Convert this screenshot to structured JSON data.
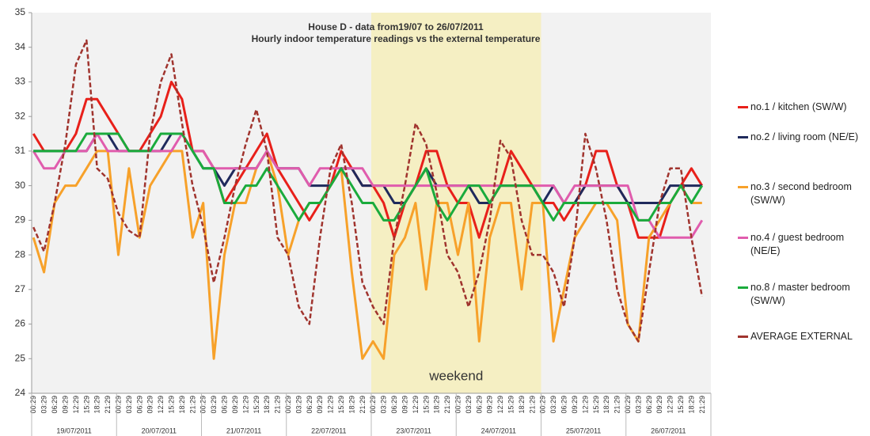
{
  "chart_data": {
    "type": "line",
    "title": "House D - data from19/07 to 26/07/2011",
    "subtitle": "Hourly indoor temperature readings vs the external temperature",
    "categories": [
      "00:29",
      "03:29",
      "06:29",
      "09:29",
      "12:29",
      "15:29",
      "18:29",
      "21:29",
      "00:29",
      "03:29",
      "06:29",
      "09:29",
      "12:29",
      "15:29",
      "18:29",
      "21:29",
      "00:29",
      "03:29",
      "06:29",
      "09:29",
      "12:29",
      "15:29",
      "18:29",
      "21:29",
      "00:29",
      "03:29",
      "06:29",
      "09:29",
      "12:29",
      "15:29",
      "18:29",
      "21:29",
      "00:29",
      "03:29",
      "06:29",
      "09:29",
      "12:29",
      "15:29",
      "18:29",
      "21:29",
      "00:29",
      "03:29",
      "06:29",
      "09:29",
      "12:29",
      "15:29",
      "18:29",
      "21:29",
      "00:29",
      "03:29",
      "06:29",
      "09:29",
      "12:29",
      "15:29",
      "18:29",
      "21:29",
      "00:29",
      "03:29",
      "06:29",
      "09:29",
      "12:29",
      "15:29",
      "18:29",
      "21:29"
    ],
    "category_groups": [
      "19/07/2011",
      "20/07/2011",
      "21/07/2011",
      "22/07/2011",
      "23/07/2011",
      "24/07/2011",
      "25/07/2011",
      "26/07/2011"
    ],
    "highlight": {
      "groups": [
        "23/07/2011",
        "24/07/2011"
      ],
      "label": "weekend",
      "color": "#f5efc3"
    },
    "ylim": [
      24,
      35
    ],
    "yticks": [
      24,
      25,
      26,
      27,
      28,
      29,
      30,
      31,
      32,
      33,
      34,
      35
    ],
    "grid": false,
    "legend": "right",
    "series": [
      {
        "name": "no.1 / kitchen (SW/W)",
        "color": "#e8201a",
        "dashed": false,
        "values": [
          31.5,
          31,
          31,
          31,
          31.5,
          32.5,
          32.5,
          32,
          31.5,
          31,
          31,
          31.5,
          32,
          33,
          32.5,
          31,
          31,
          30.5,
          29.5,
          30,
          30.5,
          31,
          31.5,
          30.5,
          30,
          29.5,
          29,
          29.5,
          30,
          31,
          30.5,
          30,
          30,
          29.5,
          28.5,
          29.5,
          30,
          31,
          31,
          30,
          29.5,
          29.5,
          28.5,
          29.5,
          30,
          31,
          30.5,
          30,
          29.5,
          29.5,
          29,
          29.5,
          30,
          31,
          31,
          30,
          29.5,
          28.5,
          28.5,
          28.5,
          29.5,
          30,
          30.5,
          30
        ]
      },
      {
        "name": "no.2 / living room (NE/E)",
        "color": "#1f2a5c",
        "dashed": false,
        "values": [
          31,
          31,
          31,
          31,
          31,
          31,
          31.5,
          31.5,
          31,
          31,
          31,
          31,
          31,
          31.5,
          31.5,
          31,
          30.5,
          30.5,
          30,
          30.5,
          30.5,
          30.5,
          31,
          30.5,
          30.5,
          30.5,
          30,
          30,
          30,
          30.5,
          30.5,
          30,
          30,
          30,
          29.5,
          29.5,
          30,
          30.5,
          30,
          30,
          30,
          30,
          29.5,
          29.5,
          30,
          30,
          30,
          30,
          29.5,
          30,
          29.5,
          29.5,
          30,
          30,
          30,
          30,
          29.5,
          29.5,
          29.5,
          29.5,
          30,
          30,
          30,
          30
        ]
      },
      {
        "name": "no.3 /  second bedroom (SW/W)",
        "color": "#f7a12a",
        "dashed": false,
        "values": [
          28.5,
          27.5,
          29.5,
          30,
          30,
          30.5,
          31,
          31,
          28,
          30.5,
          28.5,
          30,
          30.5,
          31,
          31,
          28.5,
          29.5,
          25,
          28,
          29.5,
          29.5,
          30.5,
          31,
          30,
          28,
          29,
          29.5,
          29.5,
          30,
          30.5,
          27.5,
          25,
          25.5,
          25,
          28,
          28.5,
          29.5,
          27,
          29.5,
          29.5,
          28,
          29.5,
          25.5,
          28.5,
          29.5,
          29.5,
          27,
          29.5,
          29.5,
          25.5,
          27,
          28.5,
          29,
          29.5,
          29.5,
          29,
          26,
          25.5,
          28.5,
          29,
          29.5,
          30,
          29.5,
          29.5
        ]
      },
      {
        "name": "no.4 / guest bedroom (NE/E)",
        "color": "#e05cad",
        "dashed": false,
        "values": [
          31,
          30.5,
          30.5,
          31,
          31,
          31,
          31.5,
          31,
          31,
          31,
          31,
          31,
          31,
          31,
          31.5,
          31,
          31,
          30.5,
          30.5,
          30.5,
          30.5,
          30.5,
          31,
          30.5,
          30.5,
          30.5,
          30,
          30.5,
          30.5,
          30.5,
          30.5,
          30.5,
          30,
          30,
          30,
          30,
          30,
          30,
          30,
          30,
          30,
          30,
          30,
          30,
          30,
          30,
          30,
          30,
          30,
          30,
          29.5,
          30,
          30,
          30,
          30,
          30,
          30,
          29,
          29,
          28.5,
          28.5,
          28.5,
          28.5,
          29
        ]
      },
      {
        "name": "no.8 / master bedroom (SW/W)",
        "color": "#1aab3c",
        "dashed": false,
        "values": [
          31,
          31,
          31,
          31,
          31,
          31.5,
          31.5,
          31.5,
          31.5,
          31,
          31,
          31,
          31.5,
          31.5,
          31.5,
          31,
          30.5,
          30.5,
          29.5,
          29.5,
          30,
          30,
          30.5,
          30,
          29.5,
          29,
          29.5,
          29.5,
          30,
          30.5,
          30,
          29.5,
          29.5,
          29,
          29,
          29.5,
          30,
          30.5,
          29.5,
          29,
          29.5,
          30,
          30,
          29.5,
          30,
          30,
          30,
          30,
          29.5,
          29,
          29.5,
          29.5,
          29.5,
          29.5,
          29.5,
          29.5,
          29.5,
          29,
          29,
          29.5,
          29.5,
          30,
          29.5,
          30
        ]
      },
      {
        "name": "AVERAGE EXTERNAL",
        "color": "#a0342e",
        "dashed": true,
        "values": [
          28.8,
          28.1,
          29.5,
          31.2,
          33.5,
          34.2,
          30.5,
          30.2,
          29.2,
          28.7,
          28.5,
          31.5,
          33,
          33.8,
          31.8,
          30,
          28.8,
          27.2,
          28.5,
          30,
          31.2,
          32.2,
          31,
          28.5,
          28,
          26.5,
          26,
          28.5,
          30.5,
          31.2,
          29.5,
          27.2,
          26.5,
          26,
          28.5,
          30,
          31.8,
          31.2,
          29.8,
          28,
          27.5,
          26.5,
          27.5,
          29,
          31.3,
          30.8,
          29,
          28,
          28,
          27.5,
          26.5,
          28.5,
          31.5,
          30.5,
          29,
          27,
          26,
          25.5,
          27.5,
          29.5,
          30.5,
          30.5,
          28.5,
          26.8
        ]
      }
    ]
  }
}
